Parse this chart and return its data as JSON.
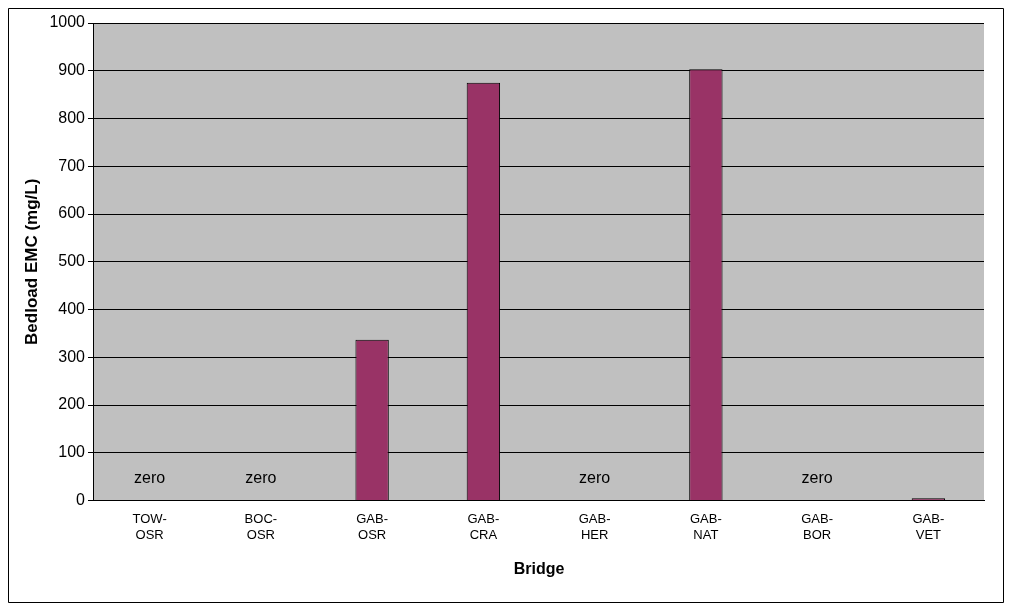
{
  "chart_data": {
    "type": "bar",
    "xlabel": "Bridge",
    "ylabel": "Bedload EMC (mg/L)",
    "categories": [
      "TOW-OSR",
      "BOC-OSR",
      "GAB-OSR",
      "GAB-CRA",
      "GAB-HER",
      "GAB-NAT",
      "GAB-BOR",
      "GAB-VET"
    ],
    "values": [
      0,
      0,
      337,
      875,
      0,
      903,
      0,
      5
    ],
    "color": "#993366",
    "ylim": [
      0,
      1000
    ],
    "yticks": [
      0,
      100,
      200,
      300,
      400,
      500,
      600,
      700,
      800,
      900,
      1000
    ],
    "grid": "y",
    "legend": false,
    "annotations": [
      {
        "text": "zero",
        "x": "TOW-OSR",
        "y": 0
      },
      {
        "text": "zero",
        "x": "BOC-OSR",
        "y": 0
      },
      {
        "text": "zero",
        "x": "GAB-HER",
        "y": 0
      },
      {
        "text": "zero",
        "x": "GAB-BOR",
        "y": 0
      }
    ]
  }
}
